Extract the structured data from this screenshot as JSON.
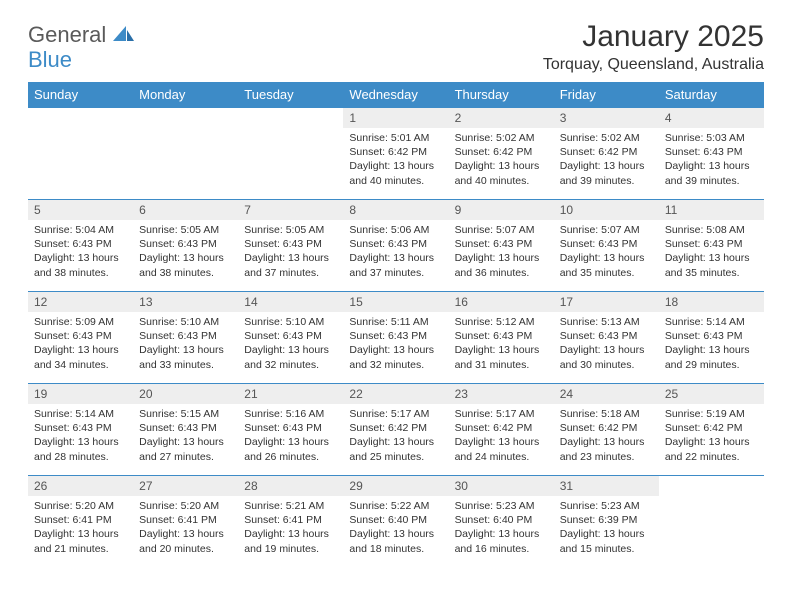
{
  "brand": {
    "text1": "General",
    "text2": "Blue"
  },
  "title": "January 2025",
  "location": "Torquay, Queensland, Australia",
  "colors": {
    "header_bg": "#3d8bc7",
    "header_text": "#ffffff",
    "daynum_bg": "#eeeeee",
    "row_border": "#3d8bc7",
    "page_bg": "#ffffff",
    "text": "#333333",
    "logo_gray": "#5a5a5a",
    "logo_blue": "#3d8bc7"
  },
  "fonts": {
    "family": "Arial, Helvetica, sans-serif",
    "title_size": 30,
    "subtitle_size": 16,
    "weekday_size": 13,
    "daynum_size": 12,
    "body_size": 10.5
  },
  "weekdays": [
    "Sunday",
    "Monday",
    "Tuesday",
    "Wednesday",
    "Thursday",
    "Friday",
    "Saturday"
  ],
  "labels": {
    "sunrise": "Sunrise:",
    "sunset": "Sunset:",
    "daylight": "Daylight:"
  },
  "first_weekday_index": 3,
  "days": [
    {
      "n": 1,
      "sunrise": "5:01 AM",
      "sunset": "6:42 PM",
      "daylight": "13 hours and 40 minutes."
    },
    {
      "n": 2,
      "sunrise": "5:02 AM",
      "sunset": "6:42 PM",
      "daylight": "13 hours and 40 minutes."
    },
    {
      "n": 3,
      "sunrise": "5:02 AM",
      "sunset": "6:42 PM",
      "daylight": "13 hours and 39 minutes."
    },
    {
      "n": 4,
      "sunrise": "5:03 AM",
      "sunset": "6:43 PM",
      "daylight": "13 hours and 39 minutes."
    },
    {
      "n": 5,
      "sunrise": "5:04 AM",
      "sunset": "6:43 PM",
      "daylight": "13 hours and 38 minutes."
    },
    {
      "n": 6,
      "sunrise": "5:05 AM",
      "sunset": "6:43 PM",
      "daylight": "13 hours and 38 minutes."
    },
    {
      "n": 7,
      "sunrise": "5:05 AM",
      "sunset": "6:43 PM",
      "daylight": "13 hours and 37 minutes."
    },
    {
      "n": 8,
      "sunrise": "5:06 AM",
      "sunset": "6:43 PM",
      "daylight": "13 hours and 37 minutes."
    },
    {
      "n": 9,
      "sunrise": "5:07 AM",
      "sunset": "6:43 PM",
      "daylight": "13 hours and 36 minutes."
    },
    {
      "n": 10,
      "sunrise": "5:07 AM",
      "sunset": "6:43 PM",
      "daylight": "13 hours and 35 minutes."
    },
    {
      "n": 11,
      "sunrise": "5:08 AM",
      "sunset": "6:43 PM",
      "daylight": "13 hours and 35 minutes."
    },
    {
      "n": 12,
      "sunrise": "5:09 AM",
      "sunset": "6:43 PM",
      "daylight": "13 hours and 34 minutes."
    },
    {
      "n": 13,
      "sunrise": "5:10 AM",
      "sunset": "6:43 PM",
      "daylight": "13 hours and 33 minutes."
    },
    {
      "n": 14,
      "sunrise": "5:10 AM",
      "sunset": "6:43 PM",
      "daylight": "13 hours and 32 minutes."
    },
    {
      "n": 15,
      "sunrise": "5:11 AM",
      "sunset": "6:43 PM",
      "daylight": "13 hours and 32 minutes."
    },
    {
      "n": 16,
      "sunrise": "5:12 AM",
      "sunset": "6:43 PM",
      "daylight": "13 hours and 31 minutes."
    },
    {
      "n": 17,
      "sunrise": "5:13 AM",
      "sunset": "6:43 PM",
      "daylight": "13 hours and 30 minutes."
    },
    {
      "n": 18,
      "sunrise": "5:14 AM",
      "sunset": "6:43 PM",
      "daylight": "13 hours and 29 minutes."
    },
    {
      "n": 19,
      "sunrise": "5:14 AM",
      "sunset": "6:43 PM",
      "daylight": "13 hours and 28 minutes."
    },
    {
      "n": 20,
      "sunrise": "5:15 AM",
      "sunset": "6:43 PM",
      "daylight": "13 hours and 27 minutes."
    },
    {
      "n": 21,
      "sunrise": "5:16 AM",
      "sunset": "6:43 PM",
      "daylight": "13 hours and 26 minutes."
    },
    {
      "n": 22,
      "sunrise": "5:17 AM",
      "sunset": "6:42 PM",
      "daylight": "13 hours and 25 minutes."
    },
    {
      "n": 23,
      "sunrise": "5:17 AM",
      "sunset": "6:42 PM",
      "daylight": "13 hours and 24 minutes."
    },
    {
      "n": 24,
      "sunrise": "5:18 AM",
      "sunset": "6:42 PM",
      "daylight": "13 hours and 23 minutes."
    },
    {
      "n": 25,
      "sunrise": "5:19 AM",
      "sunset": "6:42 PM",
      "daylight": "13 hours and 22 minutes."
    },
    {
      "n": 26,
      "sunrise": "5:20 AM",
      "sunset": "6:41 PM",
      "daylight": "13 hours and 21 minutes."
    },
    {
      "n": 27,
      "sunrise": "5:20 AM",
      "sunset": "6:41 PM",
      "daylight": "13 hours and 20 minutes."
    },
    {
      "n": 28,
      "sunrise": "5:21 AM",
      "sunset": "6:41 PM",
      "daylight": "13 hours and 19 minutes."
    },
    {
      "n": 29,
      "sunrise": "5:22 AM",
      "sunset": "6:40 PM",
      "daylight": "13 hours and 18 minutes."
    },
    {
      "n": 30,
      "sunrise": "5:23 AM",
      "sunset": "6:40 PM",
      "daylight": "13 hours and 16 minutes."
    },
    {
      "n": 31,
      "sunrise": "5:23 AM",
      "sunset": "6:39 PM",
      "daylight": "13 hours and 15 minutes."
    }
  ]
}
